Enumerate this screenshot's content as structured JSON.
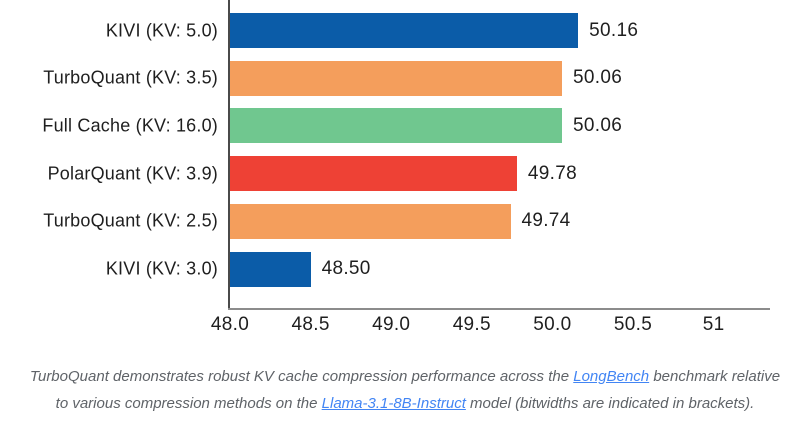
{
  "chart_data": {
    "type": "bar",
    "orientation": "horizontal",
    "categories": [
      "KIVI (KV: 5.0)",
      "TurboQuant (KV: 3.5)",
      "Full Cache (KV: 16.0)",
      "PolarQuant (KV: 3.9)",
      "TurboQuant (KV: 2.5)",
      "KIVI (KV: 3.0)"
    ],
    "values": [
      50.16,
      50.06,
      50.06,
      49.78,
      49.74,
      48.5
    ],
    "value_labels": [
      "50.16",
      "50.06",
      "50.06",
      "49.78",
      "49.74",
      "48.50"
    ],
    "bar_colors": [
      "#0b5ca8",
      "#f49e5c",
      "#70c78f",
      "#ee4135",
      "#f49e5c",
      "#0b5ca8"
    ],
    "series_colors": {
      "KIVI": "#0b5ca8",
      "TurboQuant": "#f49e5c",
      "Full Cache": "#70c78f",
      "PolarQuant": "#ee4135"
    },
    "x_ticks": [
      {
        "value": 48.0,
        "label": "48.0"
      },
      {
        "value": 48.5,
        "label": "48.5"
      },
      {
        "value": 49.0,
        "label": "49.0"
      },
      {
        "value": 49.5,
        "label": "49.5"
      },
      {
        "value": 50.0,
        "label": "50.0"
      },
      {
        "value": 50.5,
        "label": "50.5"
      },
      {
        "value": 51.0,
        "label": "51"
      }
    ],
    "xlim": [
      48.0,
      51.35
    ],
    "grid": false,
    "legend_position": "inside-right",
    "legend": [
      {
        "label": "KIVI",
        "color": "#0b5ca8"
      },
      {
        "label": "TurboQuant",
        "color": "#f49e5c"
      },
      {
        "label": "Full Cache",
        "color": "#70c78f"
      },
      {
        "label": "PolarQuant",
        "color": "#ee4135"
      }
    ],
    "title": "",
    "xlabel": "",
    "ylabel": ""
  },
  "caption": {
    "segments": [
      {
        "type": "text",
        "text": "TurboQuant demonstrates robust KV cache compression performance across the "
      },
      {
        "type": "link",
        "text": "LongBench"
      },
      {
        "type": "text",
        "text": " benchmark relative to various compression methods on the "
      },
      {
        "type": "link",
        "text": "Llama-3.1-8B-Instruct"
      },
      {
        "type": "text",
        "text": " model (bitwidths are indicated in brackets)."
      }
    ],
    "text_color": "#5f6368",
    "link_color": "#4285f4"
  },
  "colors": {
    "background": "#ffffff",
    "axis_vertical": "#4a4a4a",
    "axis_horizontal": "#8c8c8c",
    "chart_text": "#1f1f1f"
  }
}
